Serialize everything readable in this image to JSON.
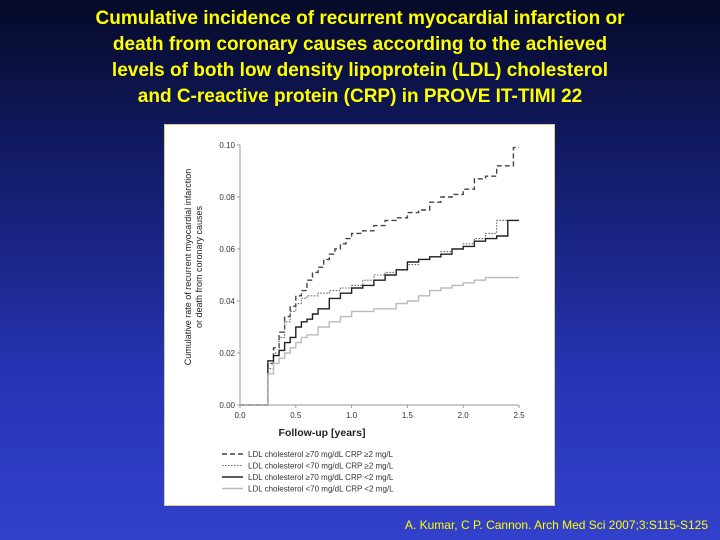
{
  "slide": {
    "title_lines": [
      "Cumulative incidence of recurrent myocardial infarction or",
      "death from coronary causes according to the achieved",
      "levels of both low density lipoprotein (LDL) cholesterol",
      "and C-reactive protein (CRP) in PROVE IT-TIMI 22"
    ],
    "citation": "A. Kumar, C P. Cannon. Arch Med Sci 2007;3:S115-S125"
  },
  "chart_data": {
    "type": "line",
    "xlabel": "Follow-up [years]",
    "ylabel_lines": [
      "Cumulative rate of recurrent myocardial infarction",
      "or death from coronary causes"
    ],
    "xlim": [
      0,
      2.5
    ],
    "ylim": [
      0,
      0.1
    ],
    "xticks": [
      0.0,
      0.5,
      1.0,
      1.5,
      2.0,
      2.5
    ],
    "xtick_labels": [
      "0.0",
      "0.5",
      "1.0",
      "1.5",
      "2.0",
      "2.5"
    ],
    "yticks": [
      0,
      0.02,
      0.04,
      0.06,
      0.08,
      0.1
    ],
    "ytick_labels": [
      "0.00",
      "0.02",
      "0.04",
      "0.06",
      "0.08",
      "0.10"
    ],
    "grid": false,
    "legend_position": "bottom",
    "series": [
      {
        "name": "LDL cholesterol ≥70 mg/dL CRP ≥2 mg/L",
        "style": "dashed",
        "color": "#444444",
        "x": [
          0.0,
          0.2,
          0.25,
          0.3,
          0.35,
          0.4,
          0.45,
          0.5,
          0.55,
          0.6,
          0.65,
          0.7,
          0.75,
          0.8,
          0.85,
          0.9,
          0.95,
          1.0,
          1.1,
          1.2,
          1.3,
          1.4,
          1.5,
          1.6,
          1.7,
          1.8,
          1.9,
          2.0,
          2.1,
          2.2,
          2.3,
          2.4,
          2.45,
          2.5
        ],
        "y": [
          0.0,
          0.0,
          0.016,
          0.022,
          0.028,
          0.034,
          0.038,
          0.042,
          0.044,
          0.048,
          0.051,
          0.053,
          0.056,
          0.058,
          0.06,
          0.062,
          0.064,
          0.066,
          0.067,
          0.069,
          0.071,
          0.072,
          0.074,
          0.075,
          0.078,
          0.08,
          0.081,
          0.083,
          0.087,
          0.088,
          0.092,
          0.092,
          0.099,
          0.099
        ]
      },
      {
        "name": "LDL cholesterol <70 mg/dL CRP ≥2 mg/L",
        "style": "dotted",
        "color": "#666666",
        "x": [
          0.0,
          0.2,
          0.25,
          0.3,
          0.35,
          0.4,
          0.45,
          0.5,
          0.55,
          0.6,
          0.7,
          0.8,
          0.9,
          1.0,
          1.1,
          1.2,
          1.3,
          1.4,
          1.5,
          1.6,
          1.7,
          1.8,
          1.9,
          2.0,
          2.1,
          2.2,
          2.3,
          2.5
        ],
        "y": [
          0.0,
          0.0,
          0.014,
          0.02,
          0.026,
          0.032,
          0.036,
          0.039,
          0.041,
          0.042,
          0.043,
          0.044,
          0.045,
          0.046,
          0.048,
          0.05,
          0.051,
          0.052,
          0.054,
          0.056,
          0.057,
          0.059,
          0.06,
          0.062,
          0.064,
          0.066,
          0.071,
          0.071
        ]
      },
      {
        "name": "LDL cholesterol ≥70 mg/dL CRP <2 mg/L",
        "style": "solid",
        "color": "#222222",
        "x": [
          0.0,
          0.2,
          0.25,
          0.3,
          0.35,
          0.4,
          0.45,
          0.5,
          0.55,
          0.6,
          0.65,
          0.7,
          0.8,
          0.9,
          1.0,
          1.1,
          1.2,
          1.3,
          1.4,
          1.5,
          1.6,
          1.7,
          1.8,
          1.9,
          2.0,
          2.1,
          2.2,
          2.3,
          2.4,
          2.5
        ],
        "y": [
          0.0,
          0.0,
          0.017,
          0.019,
          0.021,
          0.024,
          0.026,
          0.03,
          0.032,
          0.033,
          0.035,
          0.037,
          0.041,
          0.043,
          0.045,
          0.046,
          0.048,
          0.05,
          0.052,
          0.055,
          0.056,
          0.057,
          0.058,
          0.06,
          0.061,
          0.063,
          0.064,
          0.065,
          0.071,
          0.071
        ]
      },
      {
        "name": "LDL cholesterol <70 mg/dL CRP <2 mg/L",
        "style": "solid",
        "color": "#bbbbbb",
        "x": [
          0.0,
          0.2,
          0.25,
          0.3,
          0.35,
          0.4,
          0.45,
          0.5,
          0.55,
          0.6,
          0.7,
          0.8,
          0.9,
          1.0,
          1.2,
          1.4,
          1.5,
          1.6,
          1.7,
          1.8,
          1.9,
          2.0,
          2.1,
          2.2,
          2.3,
          2.4,
          2.5
        ],
        "y": [
          0.0,
          0.0,
          0.012,
          0.016,
          0.018,
          0.02,
          0.022,
          0.024,
          0.026,
          0.027,
          0.03,
          0.032,
          0.034,
          0.036,
          0.037,
          0.039,
          0.04,
          0.042,
          0.044,
          0.045,
          0.046,
          0.047,
          0.048,
          0.049,
          0.049,
          0.049,
          0.049
        ]
      }
    ]
  }
}
